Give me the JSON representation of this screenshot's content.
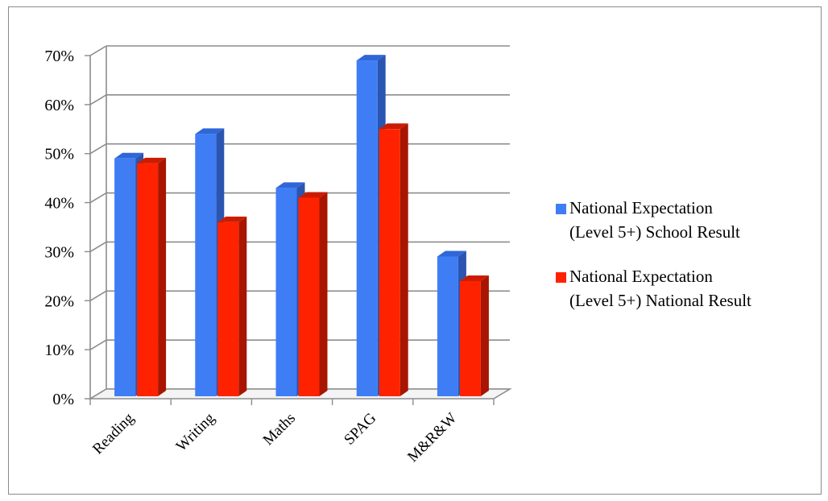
{
  "chart_data": {
    "type": "bar",
    "categories": [
      "Reading",
      "Writing",
      "Maths",
      "SPAG",
      "M&R&W"
    ],
    "series": [
      {
        "name": "National Expectation (Level 5+) School Result",
        "values": [
          49,
          54,
          43,
          69,
          29
        ]
      },
      {
        "name": "National Expectation (Level 5+) National Result",
        "values": [
          48,
          36,
          41,
          55,
          24
        ]
      }
    ],
    "ylim": [
      0,
      70
    ],
    "yticks": [
      "0%",
      "10%",
      "20%",
      "30%",
      "40%",
      "50%",
      "60%",
      "70%"
    ],
    "legend": {
      "position": "right",
      "items": [
        [
          "National Expectation",
          "(Level 5+) School Result"
        ],
        [
          "National Expectation",
          "(Level 5+) National Result"
        ]
      ]
    },
    "grid": true,
    "style": "3d-clustered",
    "colors": [
      "#3f7df5",
      "#ff2200"
    ]
  }
}
